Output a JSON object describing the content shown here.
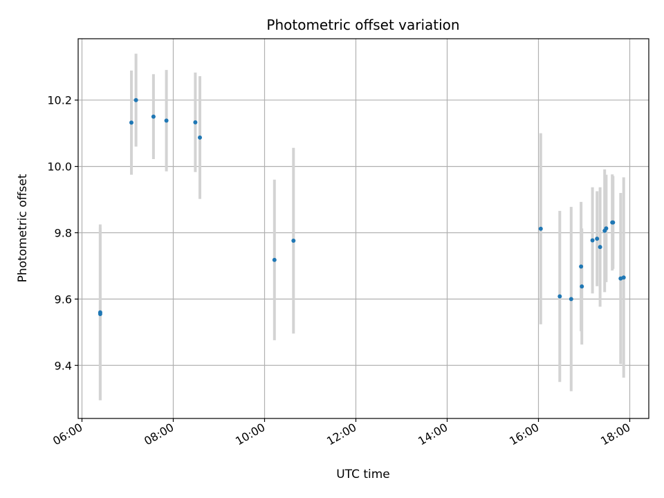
{
  "chart_data": {
    "type": "scatter",
    "title": "Photometric offset variation",
    "xlabel": "UTC time",
    "ylabel": "Photometric offset",
    "xlim": [
      "05:55",
      "18:25"
    ],
    "ylim": [
      9.24,
      10.385
    ],
    "x_ticks": [
      "06:00",
      "08:00",
      "10:00",
      "12:00",
      "14:00",
      "16:00",
      "18:00"
    ],
    "y_ticks": [
      "9.4",
      "9.6",
      "9.8",
      "10.0",
      "10.2"
    ],
    "grid": true,
    "legend": "none",
    "colors": {
      "points": "#1f77b4",
      "errorbars": "#d3d3d3",
      "grid": "#b0b0b0"
    },
    "points": [
      {
        "t": "06:24",
        "y": 9.56,
        "err": 0.265
      },
      {
        "t": "06:24",
        "y": 9.555,
        "err": 0.26
      },
      {
        "t": "07:05",
        "y": 10.132,
        "err": 0.157
      },
      {
        "t": "07:11",
        "y": 10.2,
        "err": 0.14
      },
      {
        "t": "07:34",
        "y": 10.15,
        "err": 0.128
      },
      {
        "t": "07:51",
        "y": 10.138,
        "err": 0.153
      },
      {
        "t": "08:29",
        "y": 10.133,
        "err": 0.15
      },
      {
        "t": "08:35",
        "y": 10.087,
        "err": 0.185
      },
      {
        "t": "10:13",
        "y": 9.718,
        "err": 0.242
      },
      {
        "t": "10:38",
        "y": 9.776,
        "err": 0.28
      },
      {
        "t": "16:03",
        "y": 9.812,
        "err": 0.288
      },
      {
        "t": "16:28",
        "y": 9.608,
        "err": 0.258
      },
      {
        "t": "16:43",
        "y": 9.6,
        "err": 0.278
      },
      {
        "t": "16:56",
        "y": 9.698,
        "err": 0.195
      },
      {
        "t": "16:57",
        "y": 9.638,
        "err": 0.175
      },
      {
        "t": "17:11",
        "y": 9.777,
        "err": 0.16
      },
      {
        "t": "17:17",
        "y": 9.782,
        "err": 0.143
      },
      {
        "t": "17:21",
        "y": 9.757,
        "err": 0.18
      },
      {
        "t": "17:27",
        "y": 9.806,
        "err": 0.185
      },
      {
        "t": "17:29",
        "y": 9.813,
        "err": 0.162
      },
      {
        "t": "17:37",
        "y": 9.831,
        "err": 0.145
      },
      {
        "t": "17:38",
        "y": 9.831,
        "err": 0.14
      },
      {
        "t": "17:48",
        "y": 9.662,
        "err": 0.258
      },
      {
        "t": "17:52",
        "y": 9.665,
        "err": 0.302
      }
    ]
  }
}
